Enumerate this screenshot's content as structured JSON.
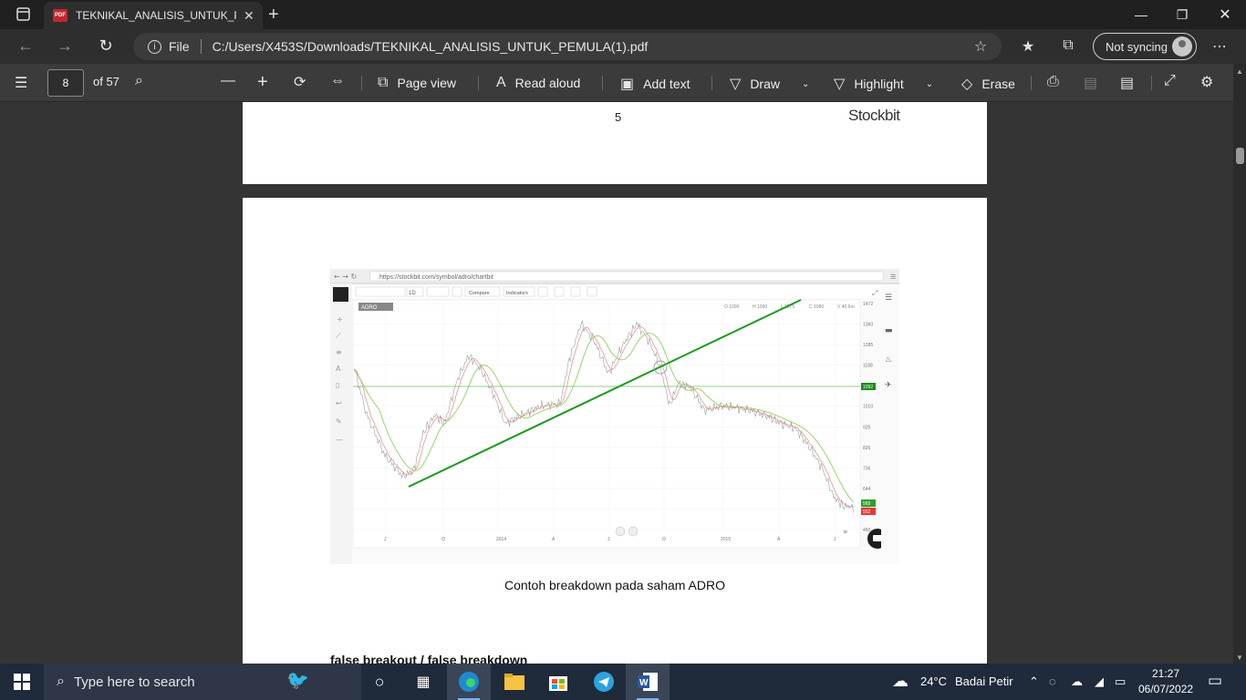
{
  "browser": {
    "tab_title": "TEKNIKAL_ANALISIS_UNTUK_PEM",
    "tab_icon_label": "PDF",
    "url_scheme": "File",
    "url": "C:/Users/X453S/Downloads/TEKNIKAL_ANALISIS_UNTUK_PEMULA(1).pdf",
    "sync_label": "Not syncing"
  },
  "pdf_toolbar": {
    "page_current": "8",
    "page_total": "of 57",
    "page_view": "Page view",
    "read_aloud": "Read aloud",
    "add_text": "Add text",
    "draw": "Draw",
    "highlight": "Highlight",
    "erase": "Erase"
  },
  "document": {
    "prev_page_number": "5",
    "prev_page_brand": "Stockbit",
    "figure_caption": "Contoh breakdown pada saham ADRO",
    "next_heading": "false breakout / false breakdown"
  },
  "embedded_chart": {
    "url": "https://stockbit.com/symbol/adro/chartbit",
    "symbol_tag": "ADRO",
    "interval": "1D",
    "compare_label": "Compare",
    "indicators_label": "Indicators",
    "ohlc_labels": [
      "O 1090",
      "H 1090",
      "L 1075",
      "C 1080",
      "V 40.6m"
    ],
    "y_ticks": [
      "1472",
      "1360",
      "1285",
      "1188",
      "1092",
      "1010",
      "925",
      "826",
      "736",
      "644",
      "552",
      "460"
    ],
    "x_ticks": [
      "J",
      "O",
      "2014",
      "A",
      "J",
      "O",
      "2015",
      "A",
      "J"
    ],
    "support_price_label": "1092",
    "last_price_labels": [
      "565",
      "552"
    ]
  },
  "taskbar": {
    "search_placeholder": "Type here to search",
    "weather_temp": "24°C",
    "weather_desc": "Badai Petir",
    "time": "21:27",
    "date": "06/07/2022"
  }
}
